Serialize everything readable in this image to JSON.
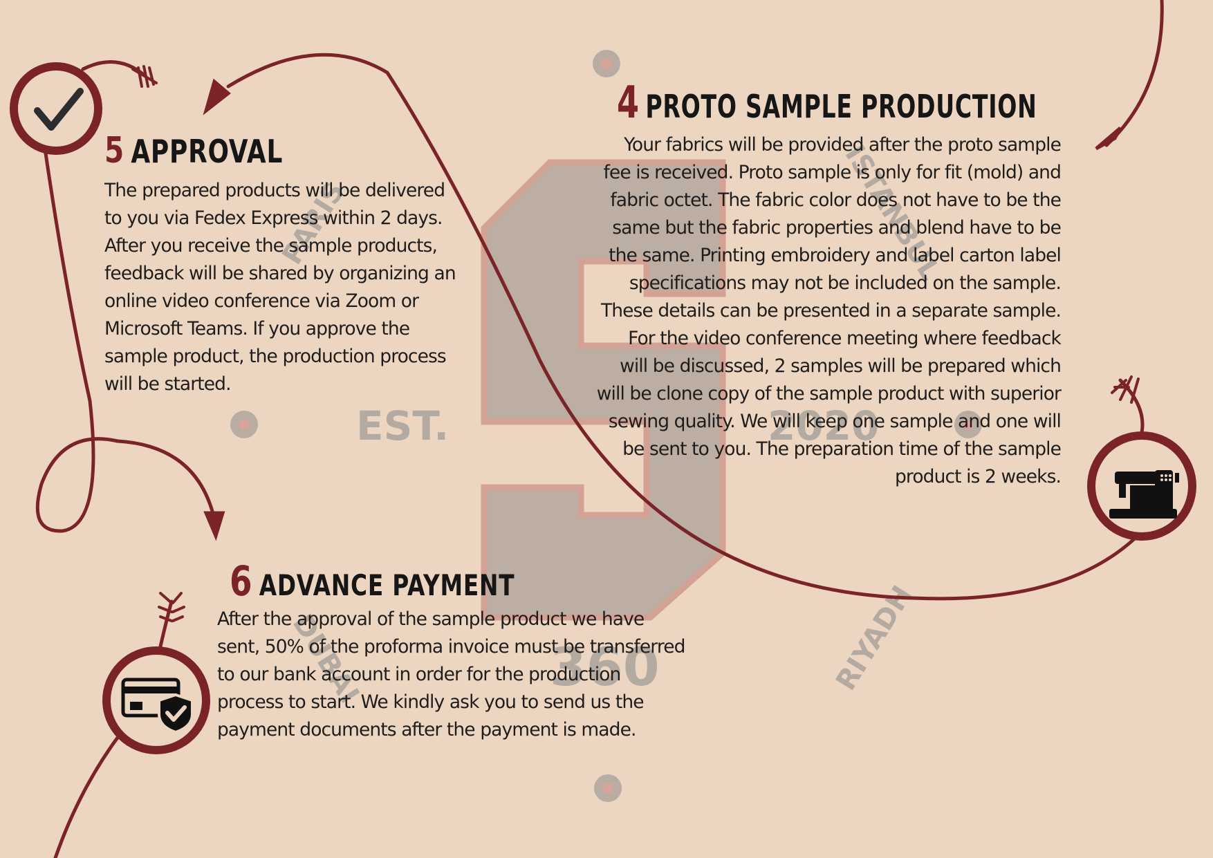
{
  "colors": {
    "background": "#edd6c1",
    "accent": "#7a2428",
    "watermark": "#aaa39c",
    "text": "#1f1d1c"
  },
  "watermark": {
    "letter": "S",
    "words": [
      "PARIS",
      "ISTANBUL",
      "EST.",
      "2020",
      "RIYADH",
      "DUBAI",
      "360"
    ]
  },
  "steps": [
    {
      "number": "5",
      "title": "APPROVAL",
      "icon": "checkmark-icon",
      "lines": [
        "The prepared products will be delivered",
        "to you via Fedex Express within 2 days.",
        "After you receive the sample products,",
        "feedback will be shared by organizing an",
        "online video conference via Zoom or",
        "Microsoft Teams. If you approve the",
        "sample product, the production process",
        "will be started."
      ]
    },
    {
      "number": "4",
      "title": "PROTO SAMPLE PRODUCTION",
      "icon": "sewing-machine-icon",
      "lines": [
        "Your fabrics will be provided after the proto sample",
        "fee is received. Proto sample is only for fit (mold) and",
        "fabric octet. The fabric color does not have to be the",
        "same but the fabric properties and blend have to be",
        "the same. Printing embroidery and label carton label",
        "specifications may not be included on the sample.",
        "These details can be presented in a separate sample.",
        "For the video conference meeting where feedback",
        "will be discussed, 2 samples will be prepared which",
        "will be clone copy of the sample product with superior",
        "sewing quality. We will keep one sample and one will",
        "be sent to you. The preparation time of the sample",
        "product is 2 weeks."
      ]
    },
    {
      "number": "6",
      "title": "ADVANCE PAYMENT",
      "icon": "secure-card-icon",
      "lines": [
        "After the approval of the sample product we have",
        "sent, 50% of the proforma invoice must be transferred",
        "to our bank account in order for the production",
        "process to start. We kindly ask you to send us the",
        "payment documents after the payment is made."
      ]
    }
  ]
}
